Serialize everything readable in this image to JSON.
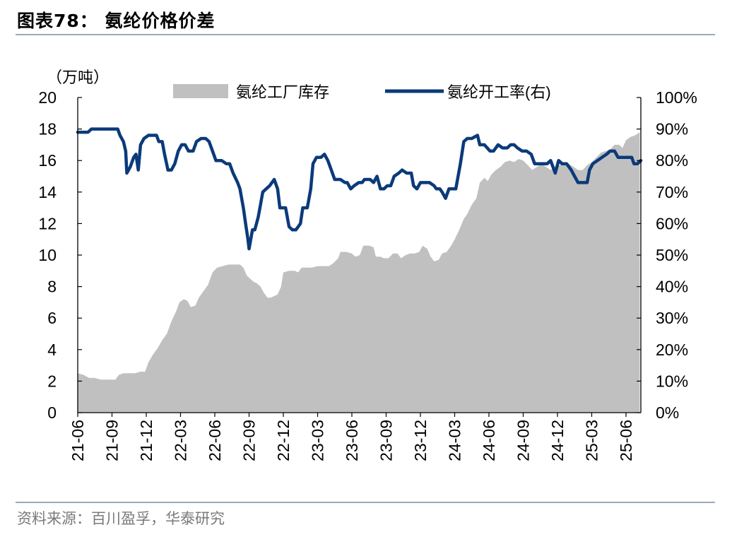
{
  "figure": {
    "title": "图表78：  氨纶价格价差",
    "source": "资料来源：百川盈孚，华泰研究"
  },
  "chart_data": {
    "type": "area+line",
    "left_axis": {
      "unit_label": "（万吨）",
      "ylim": [
        0,
        20
      ],
      "ticks": [
        0,
        2,
        4,
        6,
        8,
        10,
        12,
        14,
        16,
        18,
        20
      ]
    },
    "right_axis": {
      "ylim": [
        0,
        100
      ],
      "ticks": [
        "0%",
        "10%",
        "20%",
        "30%",
        "40%",
        "50%",
        "60%",
        "70%",
        "80%",
        "90%",
        "100%"
      ]
    },
    "x_axis": {
      "tick_labels": [
        "21-06",
        "21-09",
        "21-12",
        "22-03",
        "22-06",
        "22-09",
        "22-12",
        "23-03",
        "23-06",
        "23-09",
        "23-12",
        "24-03",
        "24-06",
        "24-09",
        "24-12",
        "25-03",
        "25-06"
      ],
      "range_months": [
        0,
        49.3
      ]
    },
    "legend_position": "top",
    "grid": false,
    "series": [
      {
        "name": "氨纶工厂库存",
        "type": "area",
        "axis": "left",
        "color": "#c0c0c0",
        "points": [
          [
            0.0,
            2.5
          ],
          [
            0.5,
            2.4
          ],
          [
            1.0,
            2.2
          ],
          [
            1.5,
            2.2
          ],
          [
            2.0,
            2.1
          ],
          [
            2.6,
            2.1
          ],
          [
            3.3,
            2.1
          ],
          [
            3.6,
            2.4
          ],
          [
            4.0,
            2.5
          ],
          [
            4.6,
            2.5
          ],
          [
            5.0,
            2.5
          ],
          [
            5.5,
            2.6
          ],
          [
            5.9,
            2.6
          ],
          [
            6.2,
            3.2
          ],
          [
            6.6,
            3.7
          ],
          [
            7.0,
            4.1
          ],
          [
            7.4,
            4.6
          ],
          [
            7.8,
            5.0
          ],
          [
            8.2,
            5.8
          ],
          [
            8.6,
            6.4
          ],
          [
            8.9,
            7.0
          ],
          [
            9.3,
            7.2
          ],
          [
            9.6,
            7.1
          ],
          [
            9.9,
            6.7
          ],
          [
            10.3,
            6.8
          ],
          [
            10.6,
            7.3
          ],
          [
            11.0,
            7.7
          ],
          [
            11.4,
            8.1
          ],
          [
            11.8,
            8.9
          ],
          [
            12.2,
            9.2
          ],
          [
            12.7,
            9.3
          ],
          [
            13.2,
            9.4
          ],
          [
            13.7,
            9.4
          ],
          [
            14.2,
            9.4
          ],
          [
            14.5,
            9.2
          ],
          [
            14.8,
            8.7
          ],
          [
            15.1,
            8.5
          ],
          [
            15.4,
            8.3
          ],
          [
            15.7,
            8.2
          ],
          [
            16.0,
            8.0
          ],
          [
            16.3,
            7.6
          ],
          [
            16.6,
            7.3
          ],
          [
            16.9,
            7.3
          ],
          [
            17.2,
            7.4
          ],
          [
            17.5,
            7.5
          ],
          [
            17.8,
            8.0
          ],
          [
            18.0,
            8.9
          ],
          [
            18.5,
            9.0
          ],
          [
            19.0,
            9.0
          ],
          [
            19.3,
            8.9
          ],
          [
            19.6,
            9.2
          ],
          [
            20.0,
            9.2
          ],
          [
            20.5,
            9.2
          ],
          [
            21.0,
            9.3
          ],
          [
            21.5,
            9.3
          ],
          [
            22.0,
            9.3
          ],
          [
            22.4,
            9.5
          ],
          [
            22.8,
            9.8
          ],
          [
            23.0,
            10.2
          ],
          [
            23.5,
            10.2
          ],
          [
            24.0,
            10.1
          ],
          [
            24.3,
            9.9
          ],
          [
            24.7,
            10.0
          ],
          [
            25.0,
            10.6
          ],
          [
            25.5,
            10.6
          ],
          [
            25.9,
            10.5
          ],
          [
            26.1,
            9.9
          ],
          [
            26.5,
            9.9
          ],
          [
            26.8,
            9.8
          ],
          [
            27.2,
            9.8
          ],
          [
            27.6,
            10.1
          ],
          [
            28.0,
            10.1
          ],
          [
            28.3,
            9.8
          ],
          [
            28.7,
            10.0
          ],
          [
            29.1,
            10.1
          ],
          [
            29.5,
            10.1
          ],
          [
            29.9,
            10.2
          ],
          [
            30.2,
            10.6
          ],
          [
            30.6,
            10.4
          ],
          [
            30.9,
            9.9
          ],
          [
            31.2,
            9.6
          ],
          [
            31.6,
            9.7
          ],
          [
            31.9,
            10.1
          ],
          [
            32.3,
            10.2
          ],
          [
            32.7,
            10.6
          ],
          [
            33.0,
            11.0
          ],
          [
            33.4,
            11.6
          ],
          [
            33.8,
            12.3
          ],
          [
            34.1,
            12.6
          ],
          [
            34.5,
            13.2
          ],
          [
            34.9,
            13.6
          ],
          [
            35.2,
            14.6
          ],
          [
            35.6,
            14.9
          ],
          [
            35.9,
            14.7
          ],
          [
            36.2,
            15.1
          ],
          [
            36.6,
            15.4
          ],
          [
            37.0,
            15.6
          ],
          [
            37.4,
            15.9
          ],
          [
            37.8,
            16.0
          ],
          [
            38.2,
            15.9
          ],
          [
            38.6,
            16.1
          ],
          [
            39.0,
            16.0
          ],
          [
            39.4,
            15.7
          ],
          [
            39.8,
            15.4
          ],
          [
            40.2,
            15.6
          ],
          [
            40.6,
            15.8
          ],
          [
            41.0,
            15.6
          ],
          [
            41.4,
            15.4
          ],
          [
            41.8,
            15.6
          ],
          [
            42.2,
            15.7
          ],
          [
            42.6,
            15.9
          ],
          [
            43.0,
            15.8
          ],
          [
            43.4,
            15.6
          ],
          [
            43.8,
            15.4
          ],
          [
            44.2,
            15.4
          ],
          [
            44.6,
            15.7
          ],
          [
            45.0,
            15.9
          ],
          [
            45.4,
            16.2
          ],
          [
            45.8,
            16.5
          ],
          [
            46.2,
            16.6
          ],
          [
            46.6,
            16.7
          ],
          [
            47.0,
            17.0
          ],
          [
            47.4,
            17.0
          ],
          [
            47.7,
            16.8
          ],
          [
            48.0,
            17.3
          ],
          [
            48.4,
            17.5
          ],
          [
            48.8,
            17.6
          ],
          [
            49.2,
            17.8
          ]
        ]
      },
      {
        "name": "氨纶开工率(右)",
        "type": "line",
        "axis": "right",
        "color": "#0b3a7a",
        "points": [
          [
            0.0,
            89
          ],
          [
            0.9,
            89
          ],
          [
            1.2,
            90
          ],
          [
            2.0,
            90
          ],
          [
            3.0,
            90
          ],
          [
            3.5,
            90
          ],
          [
            3.7,
            88
          ],
          [
            4.0,
            86
          ],
          [
            4.2,
            83
          ],
          [
            4.3,
            76
          ],
          [
            4.6,
            78
          ],
          [
            4.9,
            81
          ],
          [
            5.1,
            82
          ],
          [
            5.3,
            77
          ],
          [
            5.5,
            85
          ],
          [
            5.8,
            87
          ],
          [
            6.2,
            88
          ],
          [
            6.9,
            88
          ],
          [
            7.1,
            86
          ],
          [
            7.4,
            86
          ],
          [
            7.6,
            82
          ],
          [
            7.9,
            77
          ],
          [
            8.2,
            77
          ],
          [
            8.5,
            79
          ],
          [
            8.8,
            83
          ],
          [
            9.1,
            85
          ],
          [
            9.4,
            85
          ],
          [
            9.7,
            83
          ],
          [
            10.1,
            83
          ],
          [
            10.4,
            86
          ],
          [
            10.8,
            87
          ],
          [
            11.2,
            87
          ],
          [
            11.5,
            86
          ],
          [
            11.8,
            83
          ],
          [
            12.1,
            80
          ],
          [
            12.6,
            80
          ],
          [
            13.0,
            79
          ],
          [
            13.3,
            79
          ],
          [
            13.6,
            76
          ],
          [
            14.0,
            73
          ],
          [
            14.2,
            71
          ],
          [
            14.5,
            65
          ],
          [
            14.7,
            60
          ],
          [
            14.9,
            55
          ],
          [
            15.0,
            52
          ],
          [
            15.3,
            58
          ],
          [
            15.5,
            58
          ],
          [
            15.8,
            62
          ],
          [
            16.0,
            66
          ],
          [
            16.2,
            70
          ],
          [
            16.5,
            71
          ],
          [
            16.8,
            72
          ],
          [
            17.2,
            74
          ],
          [
            17.5,
            71
          ],
          [
            17.7,
            65
          ],
          [
            18.2,
            65
          ],
          [
            18.5,
            59
          ],
          [
            18.8,
            58
          ],
          [
            19.1,
            58
          ],
          [
            19.5,
            60
          ],
          [
            19.7,
            65
          ],
          [
            20.1,
            65
          ],
          [
            20.4,
            71
          ],
          [
            20.6,
            79
          ],
          [
            20.9,
            81
          ],
          [
            21.3,
            81
          ],
          [
            21.6,
            82
          ],
          [
            21.9,
            80
          ],
          [
            22.2,
            77
          ],
          [
            22.5,
            74
          ],
          [
            23.0,
            74
          ],
          [
            23.4,
            73
          ],
          [
            23.6,
            73
          ],
          [
            23.9,
            71
          ],
          [
            24.2,
            72
          ],
          [
            24.6,
            73
          ],
          [
            24.9,
            73
          ],
          [
            25.1,
            74
          ],
          [
            25.6,
            74
          ],
          [
            25.9,
            73
          ],
          [
            26.2,
            75
          ],
          [
            26.5,
            71
          ],
          [
            26.8,
            71
          ],
          [
            27.1,
            72
          ],
          [
            27.4,
            72
          ],
          [
            27.7,
            75
          ],
          [
            28.1,
            76
          ],
          [
            28.4,
            77
          ],
          [
            28.8,
            76
          ],
          [
            29.2,
            76
          ],
          [
            29.4,
            72
          ],
          [
            29.7,
            71
          ],
          [
            30.0,
            73
          ],
          [
            30.4,
            73
          ],
          [
            30.8,
            73
          ],
          [
            31.2,
            72
          ],
          [
            31.4,
            71
          ],
          [
            31.7,
            71
          ],
          [
            31.9,
            70
          ],
          [
            32.2,
            68
          ],
          [
            32.5,
            71
          ],
          [
            33.1,
            71
          ],
          [
            33.5,
            79
          ],
          [
            33.8,
            86
          ],
          [
            34.1,
            87
          ],
          [
            34.5,
            87
          ],
          [
            35.0,
            88
          ],
          [
            35.2,
            85
          ],
          [
            35.6,
            85
          ],
          [
            36.1,
            83
          ],
          [
            36.4,
            83
          ],
          [
            36.8,
            85
          ],
          [
            37.2,
            84
          ],
          [
            37.6,
            84
          ],
          [
            37.9,
            85
          ],
          [
            38.2,
            85
          ],
          [
            38.5,
            84
          ],
          [
            38.9,
            83
          ],
          [
            39.3,
            83
          ],
          [
            39.7,
            82
          ],
          [
            40.0,
            79
          ],
          [
            40.3,
            79
          ],
          [
            40.7,
            79
          ],
          [
            41.1,
            79
          ],
          [
            41.4,
            80
          ],
          [
            41.8,
            76
          ],
          [
            42.1,
            80
          ],
          [
            42.4,
            79
          ],
          [
            42.8,
            79
          ],
          [
            43.2,
            77
          ],
          [
            43.5,
            75
          ],
          [
            43.8,
            73
          ],
          [
            44.2,
            73
          ],
          [
            44.6,
            73
          ],
          [
            44.8,
            77
          ],
          [
            45.1,
            79
          ],
          [
            45.5,
            80
          ],
          [
            45.9,
            81
          ],
          [
            46.3,
            82
          ],
          [
            46.6,
            83
          ],
          [
            47.0,
            83
          ],
          [
            47.3,
            81
          ],
          [
            47.7,
            81
          ],
          [
            48.1,
            81
          ],
          [
            48.5,
            81
          ],
          [
            48.7,
            79
          ],
          [
            49.0,
            79
          ],
          [
            49.3,
            80
          ]
        ]
      }
    ]
  }
}
